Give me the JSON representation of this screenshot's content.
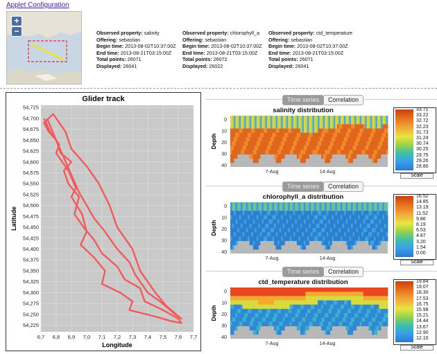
{
  "header": {
    "applet_link": "Applet Configuration"
  },
  "minimap": {
    "zoom_in": "+",
    "zoom_out": "−"
  },
  "offerings": [
    {
      "property_label": "Observed property:",
      "property": "salinity",
      "offering_label": "Offering:",
      "offering": "sebastian",
      "begin_label": "Begin time:",
      "begin": "2013-08-02T10:37:00Z",
      "end_label": "End time:",
      "end": "2013-08-21T03:15:00Z",
      "total_label": "Total points:",
      "total": "26071",
      "displayed_label": "Displayed:",
      "displayed": "26041"
    },
    {
      "property_label": "Observed property:",
      "property": "chlorophyll_a",
      "offering_label": "Offering:",
      "offering": "sebastian",
      "begin_label": "Begin time:",
      "begin": "2013-08-02T10:37:00Z",
      "end_label": "End time:",
      "end": "2013-08-21T03:15:00Z",
      "total_label": "Total points:",
      "total": "26072",
      "displayed_label": "Displayed:",
      "displayed": "26022"
    },
    {
      "property_label": "Observed property:",
      "property": "ctd_temperature",
      "offering_label": "Offering:",
      "offering": "sebastian",
      "begin_label": "Begin time:",
      "begin": "2013-08-02T10:37:00Z",
      "end_label": "End time:",
      "end": "2013-08-21T03:15:00Z",
      "total_label": "Total points:",
      "total": "26071",
      "displayed_label": "Displayed:",
      "displayed": "26041"
    }
  ],
  "chart_data": [
    {
      "type": "line",
      "title": "Glider track",
      "xlabel": "Longitude",
      "ylabel": "Latitude",
      "xlim": [
        6.7,
        7.7
      ],
      "ylim": [
        54.21,
        54.73
      ],
      "x_ticks": [
        "6,7",
        "6,8",
        "6,9",
        "7,0",
        "7,1",
        "7,2",
        "7,3",
        "7,4",
        "7,5",
        "7,6",
        "7,7"
      ],
      "y_ticks": [
        "54,225",
        "54,250",
        "54,275",
        "54,300",
        "54,325",
        "54,350",
        "54,375",
        "54,400",
        "54,425",
        "54,450",
        "54,475",
        "54,500",
        "54,525",
        "54,550",
        "54,575",
        "54,600",
        "54,625",
        "54,650",
        "54,675",
        "54,700",
        "54,725"
      ],
      "grid": true,
      "line_color": "#f25a5a",
      "x": [
        6.72,
        6.76,
        6.82,
        6.8,
        6.88,
        6.93,
        6.9,
        6.97,
        7.0,
        6.96,
        7.05,
        7.12,
        7.1,
        7.22,
        7.3,
        7.28,
        7.45,
        7.55,
        7.62,
        7.6,
        7.5,
        7.38,
        7.35,
        7.25,
        7.2,
        7.1,
        7.05,
        6.98,
        6.92,
        6.95,
        6.88,
        6.85,
        6.9,
        6.83,
        6.8,
        6.75,
        6.72,
        6.78,
        6.86,
        6.9,
        7.0,
        7.08,
        7.15,
        7.2,
        7.3,
        7.35,
        7.45,
        7.52,
        7.62,
        7.58,
        7.48,
        7.4,
        7.32,
        7.28,
        7.2,
        7.12,
        7.05,
        7.0,
        6.95,
        6.9,
        6.85,
        6.8,
        6.74
      ],
      "y": [
        54.7,
        54.67,
        54.64,
        54.62,
        54.58,
        54.54,
        54.52,
        54.48,
        54.44,
        54.41,
        54.38,
        54.35,
        54.32,
        54.3,
        54.28,
        54.26,
        54.245,
        54.235,
        54.23,
        54.24,
        54.26,
        54.28,
        54.31,
        54.33,
        54.36,
        54.39,
        54.42,
        54.45,
        54.48,
        54.52,
        54.55,
        54.58,
        54.6,
        54.62,
        54.65,
        54.67,
        54.69,
        54.71,
        54.67,
        54.63,
        54.59,
        54.55,
        54.5,
        54.45,
        54.4,
        54.35,
        54.3,
        54.27,
        54.24,
        54.25,
        54.28,
        54.3,
        54.34,
        54.37,
        54.4,
        54.44,
        54.47,
        54.5,
        54.53,
        54.57,
        54.61,
        54.65,
        54.7
      ]
    },
    {
      "type": "heatmap",
      "title": "salinity distribution",
      "ylabel": "Depth",
      "x_ticks": [
        "7-Aug",
        "14-Aug"
      ],
      "y_ticks": [
        "0",
        "10",
        "20",
        "30",
        "40"
      ],
      "legend": [
        "33.71",
        "33.22",
        "32.72",
        "32.23",
        "31.73",
        "31.24",
        "30.74",
        "30.25",
        "29.75",
        "29.26",
        "28.80"
      ],
      "scale_label": "Scale"
    },
    {
      "type": "heatmap",
      "title": "chlorophyll_a distribution",
      "ylabel": "Depth",
      "x_ticks": [
        "7-Aug",
        "14-Aug"
      ],
      "y_ticks": [
        "0",
        "10",
        "20",
        "30",
        "40"
      ],
      "legend": [
        "16.52",
        "14.85",
        "13.19",
        "11.52",
        "9.86",
        "8.19",
        "6.53",
        "4.87",
        "3.20",
        "1.54",
        "0.00"
      ],
      "scale_label": "Scale"
    },
    {
      "type": "heatmap",
      "title": "ctd_temperature distribution",
      "ylabel": "Depth",
      "x_ticks": [
        "7-Aug",
        "14-Aug"
      ],
      "y_ticks": [
        "0",
        "10",
        "20",
        "30",
        "40"
      ],
      "legend": [
        "19.84",
        "19.07",
        "18.30",
        "17.53",
        "16.75",
        "15.98",
        "15.21",
        "14.44",
        "13.67",
        "12.90",
        "12.10"
      ],
      "scale_label": "Scale"
    }
  ],
  "tabs": {
    "time_series": "Time series",
    "correlation": "Correlation"
  }
}
